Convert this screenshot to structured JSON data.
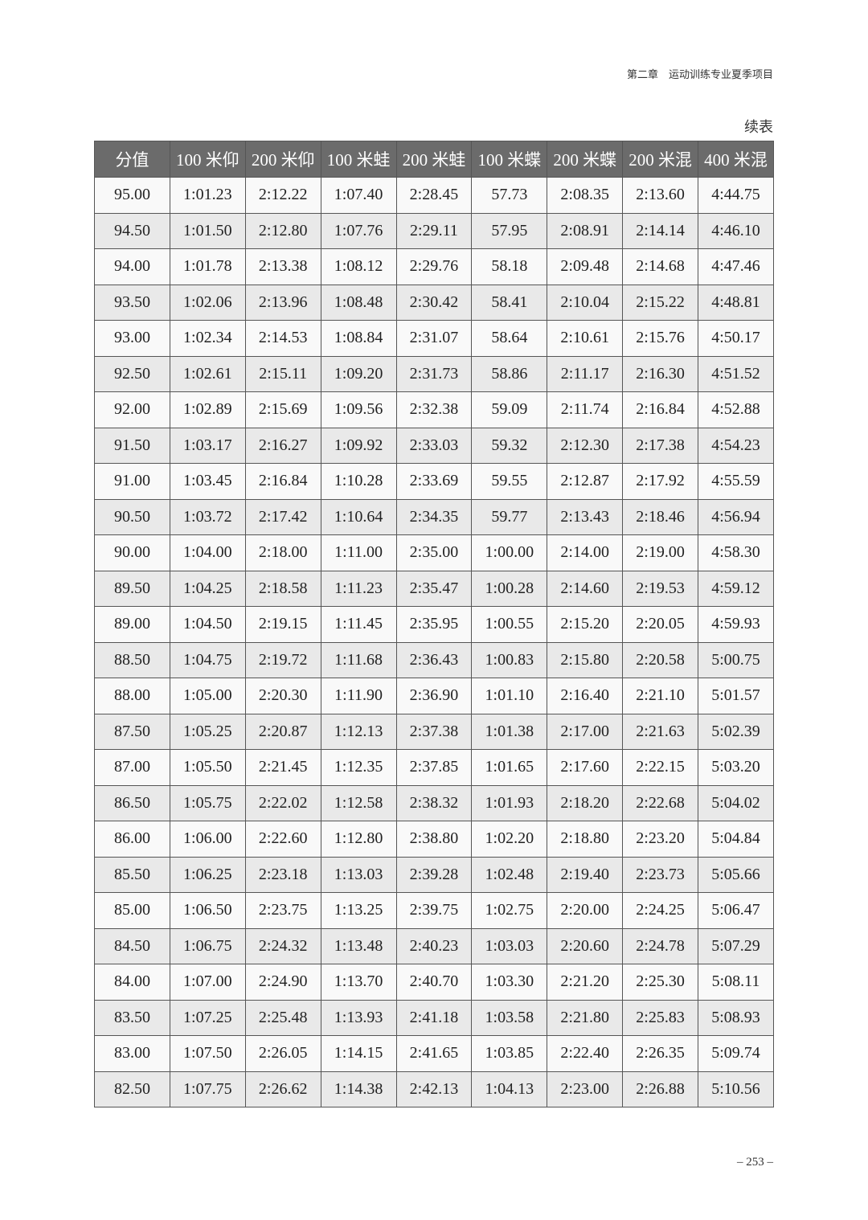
{
  "running_head": "第二章　运动训练专业夏季项目",
  "continued_label": "续表",
  "table": {
    "headers": [
      "分值",
      "100 米仰",
      "200 米仰",
      "100 米蛙",
      "200 米蛙",
      "100 米蝶",
      "200 米蝶",
      "200 米混",
      "400 米混"
    ],
    "rows": [
      [
        "95.00",
        "1:01.23",
        "2:12.22",
        "1:07.40",
        "2:28.45",
        "57.73",
        "2:08.35",
        "2:13.60",
        "4:44.75"
      ],
      [
        "94.50",
        "1:01.50",
        "2:12.80",
        "1:07.76",
        "2:29.11",
        "57.95",
        "2:08.91",
        "2:14.14",
        "4:46.10"
      ],
      [
        "94.00",
        "1:01.78",
        "2:13.38",
        "1:08.12",
        "2:29.76",
        "58.18",
        "2:09.48",
        "2:14.68",
        "4:47.46"
      ],
      [
        "93.50",
        "1:02.06",
        "2:13.96",
        "1:08.48",
        "2:30.42",
        "58.41",
        "2:10.04",
        "2:15.22",
        "4:48.81"
      ],
      [
        "93.00",
        "1:02.34",
        "2:14.53",
        "1:08.84",
        "2:31.07",
        "58.64",
        "2:10.61",
        "2:15.76",
        "4:50.17"
      ],
      [
        "92.50",
        "1:02.61",
        "2:15.11",
        "1:09.20",
        "2:31.73",
        "58.86",
        "2:11.17",
        "2:16.30",
        "4:51.52"
      ],
      [
        "92.00",
        "1:02.89",
        "2:15.69",
        "1:09.56",
        "2:32.38",
        "59.09",
        "2:11.74",
        "2:16.84",
        "4:52.88"
      ],
      [
        "91.50",
        "1:03.17",
        "2:16.27",
        "1:09.92",
        "2:33.03",
        "59.32",
        "2:12.30",
        "2:17.38",
        "4:54.23"
      ],
      [
        "91.00",
        "1:03.45",
        "2:16.84",
        "1:10.28",
        "2:33.69",
        "59.55",
        "2:12.87",
        "2:17.92",
        "4:55.59"
      ],
      [
        "90.50",
        "1:03.72",
        "2:17.42",
        "1:10.64",
        "2:34.35",
        "59.77",
        "2:13.43",
        "2:18.46",
        "4:56.94"
      ],
      [
        "90.00",
        "1:04.00",
        "2:18.00",
        "1:11.00",
        "2:35.00",
        "1:00.00",
        "2:14.00",
        "2:19.00",
        "4:58.30"
      ],
      [
        "89.50",
        "1:04.25",
        "2:18.58",
        "1:11.23",
        "2:35.47",
        "1:00.28",
        "2:14.60",
        "2:19.53",
        "4:59.12"
      ],
      [
        "89.00",
        "1:04.50",
        "2:19.15",
        "1:11.45",
        "2:35.95",
        "1:00.55",
        "2:15.20",
        "2:20.05",
        "4:59.93"
      ],
      [
        "88.50",
        "1:04.75",
        "2:19.72",
        "1:11.68",
        "2:36.43",
        "1:00.83",
        "2:15.80",
        "2:20.58",
        "5:00.75"
      ],
      [
        "88.00",
        "1:05.00",
        "2:20.30",
        "1:11.90",
        "2:36.90",
        "1:01.10",
        "2:16.40",
        "2:21.10",
        "5:01.57"
      ],
      [
        "87.50",
        "1:05.25",
        "2:20.87",
        "1:12.13",
        "2:37.38",
        "1:01.38",
        "2:17.00",
        "2:21.63",
        "5:02.39"
      ],
      [
        "87.00",
        "1:05.50",
        "2:21.45",
        "1:12.35",
        "2:37.85",
        "1:01.65",
        "2:17.60",
        "2:22.15",
        "5:03.20"
      ],
      [
        "86.50",
        "1:05.75",
        "2:22.02",
        "1:12.58",
        "2:38.32",
        "1:01.93",
        "2:18.20",
        "2:22.68",
        "5:04.02"
      ],
      [
        "86.00",
        "1:06.00",
        "2:22.60",
        "1:12.80",
        "2:38.80",
        "1:02.20",
        "2:18.80",
        "2:23.20",
        "5:04.84"
      ],
      [
        "85.50",
        "1:06.25",
        "2:23.18",
        "1:13.03",
        "2:39.28",
        "1:02.48",
        "2:19.40",
        "2:23.73",
        "5:05.66"
      ],
      [
        "85.00",
        "1:06.50",
        "2:23.75",
        "1:13.25",
        "2:39.75",
        "1:02.75",
        "2:20.00",
        "2:24.25",
        "5:06.47"
      ],
      [
        "84.50",
        "1:06.75",
        "2:24.32",
        "1:13.48",
        "2:40.23",
        "1:03.03",
        "2:20.60",
        "2:24.78",
        "5:07.29"
      ],
      [
        "84.00",
        "1:07.00",
        "2:24.90",
        "1:13.70",
        "2:40.70",
        "1:03.30",
        "2:21.20",
        "2:25.30",
        "5:08.11"
      ],
      [
        "83.50",
        "1:07.25",
        "2:25.48",
        "1:13.93",
        "2:41.18",
        "1:03.58",
        "2:21.80",
        "2:25.83",
        "5:08.93"
      ],
      [
        "83.00",
        "1:07.50",
        "2:26.05",
        "1:14.15",
        "2:41.65",
        "1:03.85",
        "2:22.40",
        "2:26.35",
        "5:09.74"
      ],
      [
        "82.50",
        "1:07.75",
        "2:26.62",
        "1:14.38",
        "2:42.13",
        "1:04.13",
        "2:23.00",
        "2:26.88",
        "5:10.56"
      ]
    ]
  },
  "page_number": "– 253 –",
  "colors": {
    "header_bg": "#6b6b6b",
    "header_text": "#ffffff",
    "row_alt": "#e9e9e9"
  }
}
